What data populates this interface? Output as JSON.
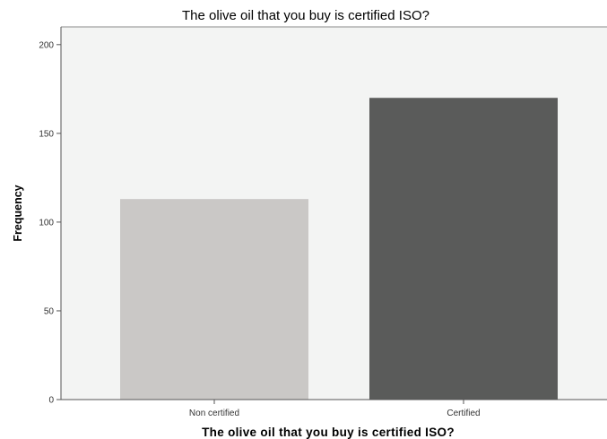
{
  "chart_data": {
    "type": "bar",
    "title": "The olive oil that you buy is certified ISO?",
    "xlabel": "The olive oil that you buy is certified ISO?",
    "ylabel": "Frequency",
    "categories": [
      "Non certified",
      "Certified"
    ],
    "values": [
      113,
      170
    ],
    "ylim": [
      0,
      210
    ],
    "yticks": [
      0,
      50,
      100,
      150,
      200
    ],
    "ytick_labels": [
      "0",
      "50",
      "100",
      "150",
      "200"
    ],
    "grid": false,
    "legend": "none",
    "colors": {
      "plot_background": "#f3f4f3",
      "bars": [
        "#cac8c6",
        "#5a5b5a"
      ],
      "axis": "#555555"
    }
  }
}
